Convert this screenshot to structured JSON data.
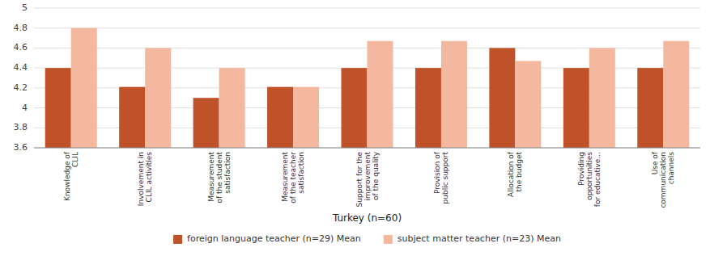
{
  "chart_data": {
    "type": "bar",
    "xlabel": "Turkey (n=60)",
    "categories": [
      "Knowledge of\nCLIL",
      "Involvement in\nCLIL activities",
      "Measurement\nof the student\nsatisfaction",
      "Measurement\nof the teacher\nsatisfaction",
      "Support for the\nimprovement\nof the quality",
      "Provision of\npublic support",
      "Allocation of\nthe budget",
      "Providing\nopportunities\nfor educative...",
      "Use of\ncommunication\nchannels"
    ],
    "series": [
      {
        "name": "foreign language teacher (n=29) Mean",
        "color": "#C0522A",
        "values": [
          4.4,
          4.21,
          4.1,
          4.21,
          4.4,
          4.4,
          4.6,
          4.4,
          4.4
        ]
      },
      {
        "name": "subject matter teacher (n=23) Mean",
        "color": "#F4B8A0",
        "values": [
          4.8,
          4.6,
          4.4,
          4.21,
          4.67,
          4.67,
          4.47,
          4.6,
          4.67
        ]
      }
    ],
    "ylim": [
      3.6,
      5.0
    ],
    "yticks": [
      3.6,
      3.8,
      4,
      4.2,
      4.4,
      4.6,
      4.8,
      5
    ],
    "grid": true,
    "legend": "bottom"
  }
}
